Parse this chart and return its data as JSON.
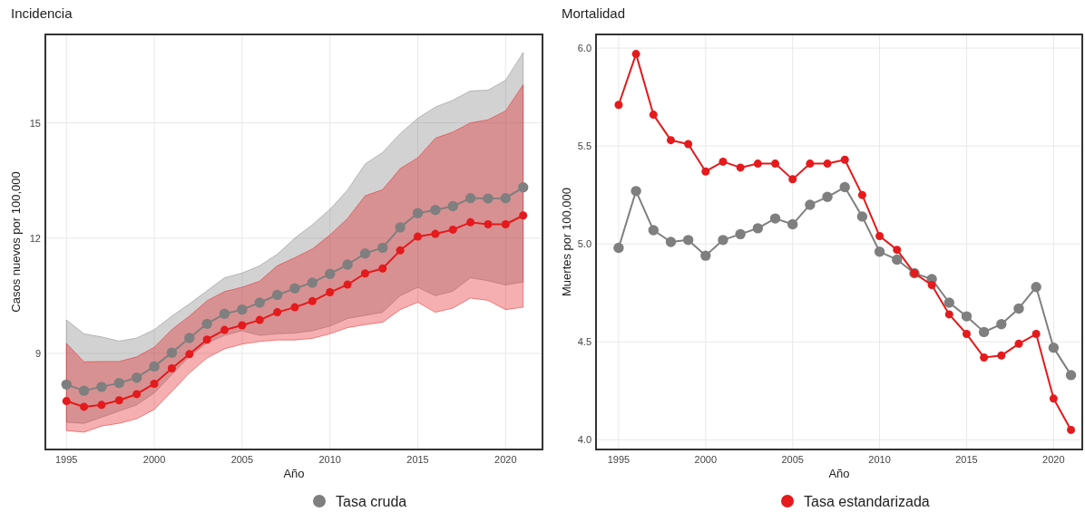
{
  "chart_data": [
    {
      "type": "line",
      "title": "Incidencia",
      "xlabel": "Año",
      "ylabel": "Casos nuevos por 100,000",
      "x": [
        1995,
        1996,
        1997,
        1998,
        1999,
        2000,
        2001,
        2002,
        2003,
        2004,
        2005,
        2006,
        2007,
        2008,
        2009,
        2010,
        2011,
        2012,
        2013,
        2014,
        2015,
        2016,
        2017,
        2018,
        2019,
        2020,
        2021
      ],
      "xlim": [
        1993.8,
        2022.1
      ],
      "xticks": [
        1995,
        2000,
        2005,
        2010,
        2015,
        2020
      ],
      "ylim": [
        6.5,
        17.3
      ],
      "yticks": [
        9,
        12,
        15
      ],
      "grid": true,
      "legend": "bottom",
      "marker": "circle",
      "series": [
        {
          "name": "Tasa cruda",
          "color": "#7f7f7f",
          "values": [
            8.19,
            8.03,
            8.13,
            8.23,
            8.37,
            8.66,
            9.02,
            9.4,
            9.77,
            10.03,
            10.14,
            10.32,
            10.52,
            10.69,
            10.84,
            11.07,
            11.31,
            11.6,
            11.75,
            12.28,
            12.65,
            12.73,
            12.83,
            13.04,
            13.03,
            13.04,
            13.32
          ],
          "lower": [
            7.21,
            7.18,
            7.34,
            7.5,
            7.66,
            7.97,
            8.45,
            8.92,
            9.27,
            9.47,
            9.59,
            9.47,
            9.51,
            9.53,
            9.59,
            9.71,
            9.91,
            9.99,
            10.07,
            10.5,
            10.72,
            10.5,
            10.62,
            10.97,
            10.89,
            10.78,
            10.86
          ],
          "upper": [
            9.87,
            9.51,
            9.43,
            9.32,
            9.4,
            9.62,
            9.97,
            10.29,
            10.63,
            10.97,
            11.09,
            11.28,
            11.58,
            12.0,
            12.35,
            12.75,
            13.25,
            13.93,
            14.23,
            14.72,
            15.12,
            15.41,
            15.59,
            15.83,
            15.85,
            16.11,
            16.83
          ]
        },
        {
          "name": "Tasa estandarizada",
          "color": "#e41a1c",
          "values": [
            7.76,
            7.61,
            7.66,
            7.78,
            7.94,
            8.21,
            8.61,
            8.98,
            9.36,
            9.61,
            9.73,
            9.87,
            10.07,
            10.2,
            10.36,
            10.59,
            10.79,
            11.08,
            11.21,
            11.68,
            12.04,
            12.11,
            12.22,
            12.41,
            12.36,
            12.36,
            12.59
          ],
          "lower": [
            6.99,
            6.95,
            7.11,
            7.18,
            7.3,
            7.54,
            8.01,
            8.49,
            8.88,
            9.12,
            9.24,
            9.31,
            9.35,
            9.35,
            9.39,
            9.51,
            9.67,
            9.75,
            9.81,
            10.14,
            10.33,
            10.07,
            10.18,
            10.44,
            10.38,
            10.14,
            10.2
          ],
          "upper": [
            9.26,
            8.78,
            8.79,
            8.79,
            8.91,
            9.16,
            9.62,
            9.97,
            10.37,
            10.61,
            10.72,
            10.88,
            11.28,
            11.49,
            11.72,
            12.08,
            12.51,
            13.1,
            13.26,
            13.81,
            14.09,
            14.6,
            14.76,
            15.0,
            15.08,
            15.31,
            15.99
          ]
        }
      ]
    },
    {
      "type": "line",
      "title": "Mortalidad",
      "xlabel": "Año",
      "ylabel": "Muertes por 100,000",
      "x": [
        1995,
        1996,
        1997,
        1998,
        1999,
        2000,
        2001,
        2002,
        2003,
        2004,
        2005,
        2006,
        2007,
        2008,
        2009,
        2010,
        2011,
        2012,
        2013,
        2014,
        2015,
        2016,
        2017,
        2018,
        2019,
        2020,
        2021
      ],
      "xlim": [
        1993.7,
        2021.65
      ],
      "xticks": [
        1995,
        2000,
        2005,
        2010,
        2015,
        2020
      ],
      "ylim": [
        3.95,
        6.07
      ],
      "yticks": [
        {
          "value": 4,
          "label": "4.0"
        },
        {
          "value": 4.5,
          "label": "4.5"
        },
        {
          "value": 5,
          "label": "5.0"
        },
        {
          "value": 5.5,
          "label": "5.5"
        },
        {
          "value": 6,
          "label": "6.0"
        }
      ],
      "grid": true,
      "legend": "bottom",
      "marker": "circle",
      "series": [
        {
          "name": "Tasa cruda",
          "color": "#7f7f7f",
          "values": [
            4.98,
            5.27,
            5.07,
            5.01,
            5.02,
            4.94,
            5.02,
            5.05,
            5.08,
            5.13,
            5.1,
            5.2,
            5.24,
            5.29,
            5.14,
            4.96,
            4.92,
            4.85,
            4.82,
            4.7,
            4.63,
            4.55,
            4.59,
            4.67,
            4.78,
            4.47,
            4.33
          ]
        },
        {
          "name": "Tasa estandarizada",
          "color": "#e41a1c",
          "values": [
            5.71,
            5.97,
            5.66,
            5.53,
            5.51,
            5.37,
            5.42,
            5.39,
            5.41,
            5.41,
            5.33,
            5.41,
            5.41,
            5.43,
            5.25,
            5.04,
            4.97,
            4.85,
            4.79,
            4.64,
            4.54,
            4.42,
            4.43,
            4.49,
            4.54,
            4.21,
            4.05
          ]
        }
      ]
    }
  ]
}
